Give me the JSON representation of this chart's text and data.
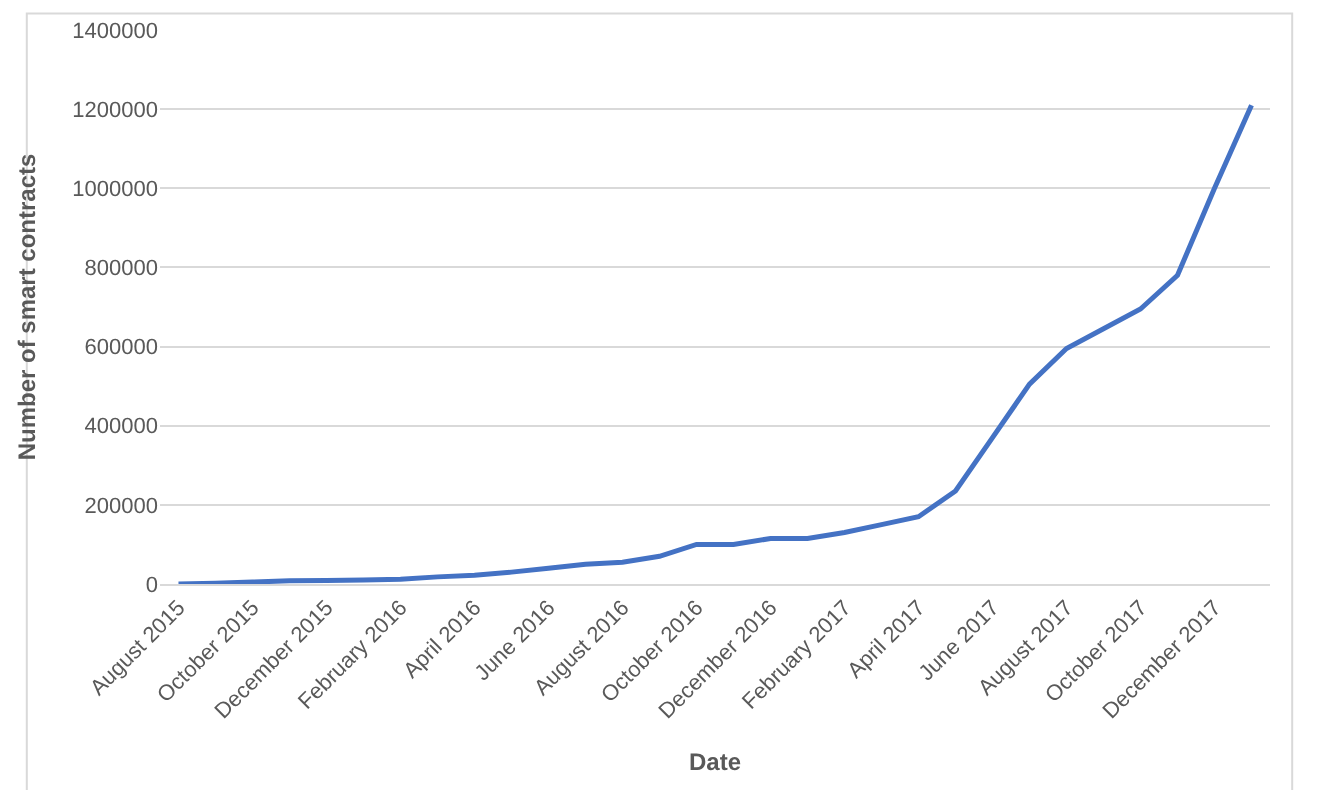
{
  "chart_data": {
    "type": "line",
    "xlabel": "Date",
    "ylabel": "Number of smart contracts",
    "categories": [
      "August 2015",
      null,
      "October 2015",
      null,
      "December 2015",
      null,
      "February 2016",
      null,
      "April 2016",
      null,
      "June 2016",
      null,
      "August 2016",
      null,
      "October 2016",
      null,
      "December 2016",
      null,
      "February 2017",
      null,
      "April 2017",
      null,
      "June 2017",
      null,
      "August 2017",
      null,
      "October 2017",
      null,
      "December 2017",
      null
    ],
    "series": [
      {
        "color": "#4472c4",
        "values": [
          0,
          2000,
          5000,
          8000,
          9000,
          10000,
          12000,
          18000,
          22000,
          30000,
          40000,
          50000,
          55000,
          70000,
          100000,
          100000,
          115000,
          115000,
          130000,
          150000,
          170000,
          235000,
          370000,
          505000,
          595000,
          645000,
          695000,
          780000,
          1000000,
          1210000
        ]
      }
    ],
    "ylim": [
      0,
      1400000
    ],
    "yticks": [
      0,
      200000,
      400000,
      600000,
      800000,
      1000000,
      1200000,
      1400000
    ],
    "grid": "y",
    "legend": false,
    "marker": "none",
    "line_style": "solid"
  }
}
